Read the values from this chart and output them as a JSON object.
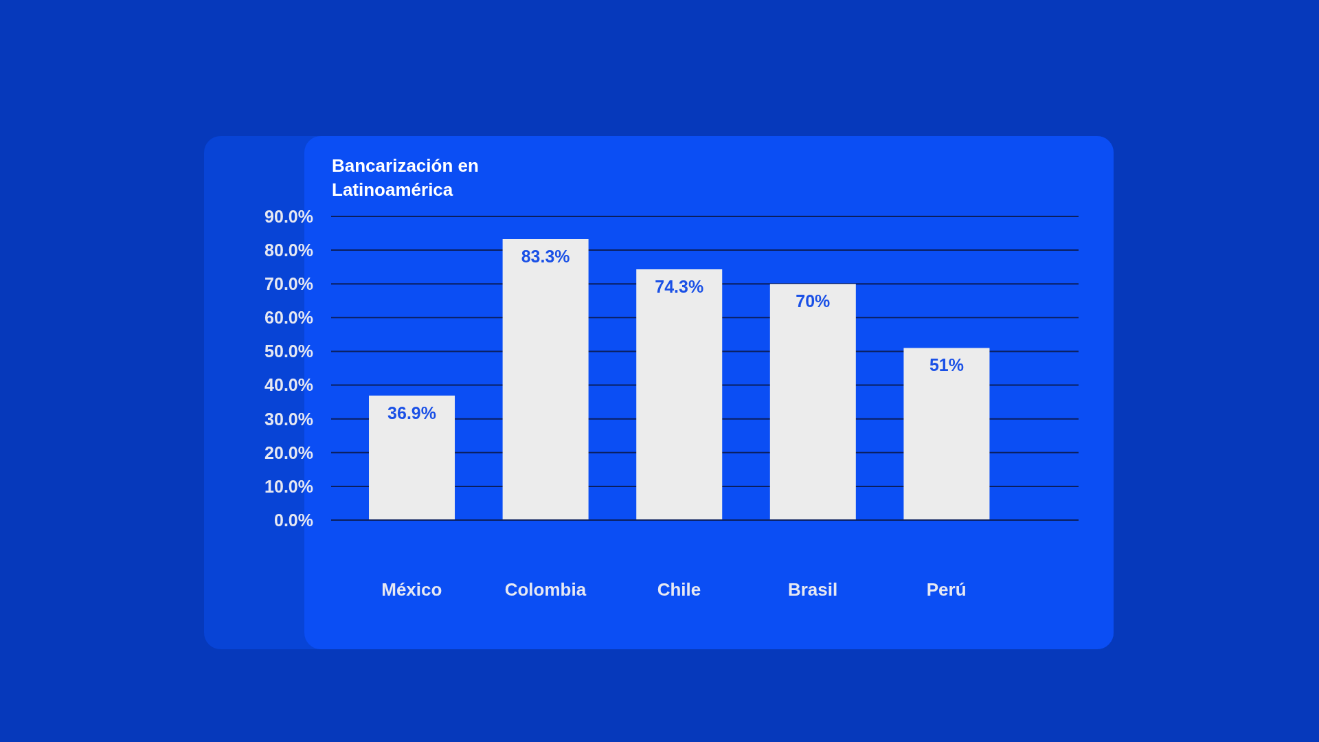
{
  "chart_data": {
    "type": "bar",
    "title": "Bancarización en Latinoamérica",
    "categories": [
      "México",
      "Colombia",
      "Chile",
      "Brasil",
      "Perú"
    ],
    "values": [
      36.9,
      83.3,
      74.3,
      70,
      51
    ],
    "value_labels": [
      "36.9%",
      "83.3%",
      "74.3%",
      "70%",
      "51%"
    ],
    "color": "#ececec",
    "ylim": [
      0,
      90
    ],
    "yticks": [
      {
        "value": 0,
        "label": "0.0%"
      },
      {
        "value": 10,
        "label": "10.0%"
      },
      {
        "value": 20,
        "label": "20.0%"
      },
      {
        "value": 30,
        "label": "30.0%"
      },
      {
        "value": 40,
        "label": "40.0%"
      },
      {
        "value": 50,
        "label": "50.0%"
      },
      {
        "value": 60,
        "label": "60.0%"
      },
      {
        "value": 70,
        "label": "70.0%"
      },
      {
        "value": 80,
        "label": "80.0%"
      },
      {
        "value": 90,
        "label": "90.0%"
      }
    ],
    "grid": "y",
    "legend": false
  }
}
